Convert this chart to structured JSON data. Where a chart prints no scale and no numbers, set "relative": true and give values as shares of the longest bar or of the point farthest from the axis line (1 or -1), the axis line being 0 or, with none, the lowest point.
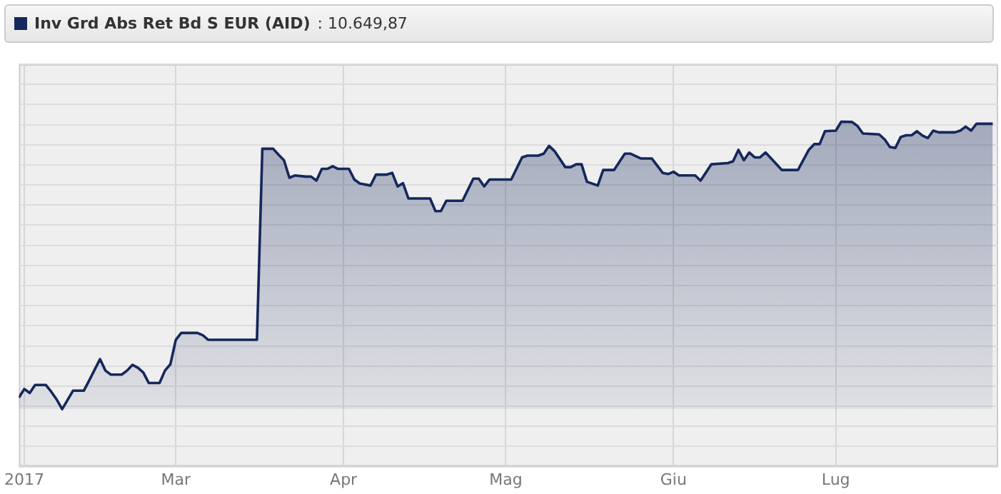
{
  "chart_data": {
    "type": "area",
    "relative": true,
    "grid": true,
    "legend": "top",
    "annotations": [
      ": 10.649,87"
    ],
    "xlim": [
      "2017-01-31",
      "2017-07-31"
    ],
    "xticks": [
      {
        "value": "2017-02-01",
        "label": "2017"
      },
      {
        "value": "2017-03-01",
        "label": "Mar"
      },
      {
        "value": "2017-04-01",
        "label": "Apr"
      },
      {
        "value": "2017-05-01",
        "label": "Mag"
      },
      {
        "value": "2017-06-01",
        "label": "Giu"
      },
      {
        "value": "2017-07-01",
        "label": "Lug"
      }
    ],
    "x": [
      "2017-01-31",
      "2017-02-01",
      "2017-02-02",
      "2017-02-03",
      "2017-02-05",
      "2017-02-06",
      "2017-02-07",
      "2017-02-08",
      "2017-02-10",
      "2017-02-12",
      "2017-02-13",
      "2017-02-15",
      "2017-02-16",
      "2017-02-17",
      "2017-02-19",
      "2017-02-20",
      "2017-02-21",
      "2017-02-22",
      "2017-02-23",
      "2017-02-24",
      "2017-02-26",
      "2017-02-27",
      "2017-02-28",
      "2017-03-01",
      "2017-03-02",
      "2017-03-05",
      "2017-03-06",
      "2017-03-07",
      "2017-03-16",
      "2017-03-17",
      "2017-03-19",
      "2017-03-20",
      "2017-03-21",
      "2017-03-22",
      "2017-03-23",
      "2017-03-25",
      "2017-03-26",
      "2017-03-27",
      "2017-03-28",
      "2017-03-29",
      "2017-03-30",
      "2017-03-31",
      "2017-04-02",
      "2017-04-03",
      "2017-04-04",
      "2017-04-06",
      "2017-04-07",
      "2017-04-09",
      "2017-04-10",
      "2017-04-11",
      "2017-04-12",
      "2017-04-13",
      "2017-04-17",
      "2017-04-18",
      "2017-04-19",
      "2017-04-20",
      "2017-04-23",
      "2017-04-25",
      "2017-04-26",
      "2017-04-27",
      "2017-04-28",
      "2017-05-02",
      "2017-05-04",
      "2017-05-05",
      "2017-05-07",
      "2017-05-08",
      "2017-05-09",
      "2017-05-10",
      "2017-05-12",
      "2017-05-13",
      "2017-05-14",
      "2017-05-15",
      "2017-05-16",
      "2017-05-18",
      "2017-05-19",
      "2017-05-21",
      "2017-05-23",
      "2017-05-24",
      "2017-05-26",
      "2017-05-28",
      "2017-05-30",
      "2017-05-31",
      "2017-06-01",
      "2017-06-02",
      "2017-06-05",
      "2017-06-06",
      "2017-06-08",
      "2017-06-11",
      "2017-06-12",
      "2017-06-13",
      "2017-06-14",
      "2017-06-15",
      "2017-06-16",
      "2017-06-17",
      "2017-06-18",
      "2017-06-20",
      "2017-06-21",
      "2017-06-24",
      "2017-06-26",
      "2017-06-27",
      "2017-06-28",
      "2017-06-29",
      "2017-07-01",
      "2017-07-02",
      "2017-07-04",
      "2017-07-05",
      "2017-07-06",
      "2017-07-09",
      "2017-07-10",
      "2017-07-11",
      "2017-07-12",
      "2017-07-13",
      "2017-07-14",
      "2017-07-15",
      "2017-07-16",
      "2017-07-17",
      "2017-07-18",
      "2017-07-19",
      "2017-07-20",
      "2017-07-23",
      "2017-07-24",
      "2017-07-25",
      "2017-07-26",
      "2017-07-27",
      "2017-07-30"
    ],
    "series": [
      {
        "name": "Inv Grd Abs Ret Bd S EUR (AID)",
        "color": "#15275c",
        "values": [
          0.04,
          0.07,
          0.056,
          0.084,
          0.084,
          0.06,
          0.033,
          0,
          0.064,
          0.064,
          0.1,
          0.174,
          0.134,
          0.12,
          0.12,
          0.134,
          0.154,
          0.144,
          0.127,
          0.091,
          0.091,
          0.134,
          0.156,
          0.241,
          0.265,
          0.265,
          0.257,
          0.241,
          0.241,
          0.906,
          0.906,
          0.885,
          0.866,
          0.805,
          0.813,
          0.809,
          0.809,
          0.795,
          0.836,
          0.836,
          0.845,
          0.836,
          0.836,
          0.799,
          0.785,
          0.778,
          0.816,
          0.816,
          0.822,
          0.775,
          0.786,
          0.733,
          0.733,
          0.689,
          0.689,
          0.725,
          0.725,
          0.802,
          0.802,
          0.775,
          0.799,
          0.799,
          0.876,
          0.882,
          0.882,
          0.889,
          0.916,
          0.898,
          0.842,
          0.842,
          0.852,
          0.852,
          0.791,
          0.778,
          0.832,
          0.832,
          0.889,
          0.889,
          0.872,
          0.872,
          0.822,
          0.818,
          0.826,
          0.813,
          0.813,
          0.795,
          0.852,
          0.856,
          0.862,
          0.902,
          0.866,
          0.893,
          0.876,
          0.876,
          0.893,
          0.853,
          0.832,
          0.832,
          0.902,
          0.922,
          0.922,
          0.967,
          0.969,
          1,
          0.999,
          0.985,
          0.959,
          0.956,
          0.939,
          0.912,
          0.909,
          0.947,
          0.953,
          0.953,
          0.967,
          0.952,
          0.943,
          0.969,
          0.963,
          0.963,
          0.969,
          0.983,
          0.969,
          0.993,
          0.993
        ]
      }
    ]
  }
}
